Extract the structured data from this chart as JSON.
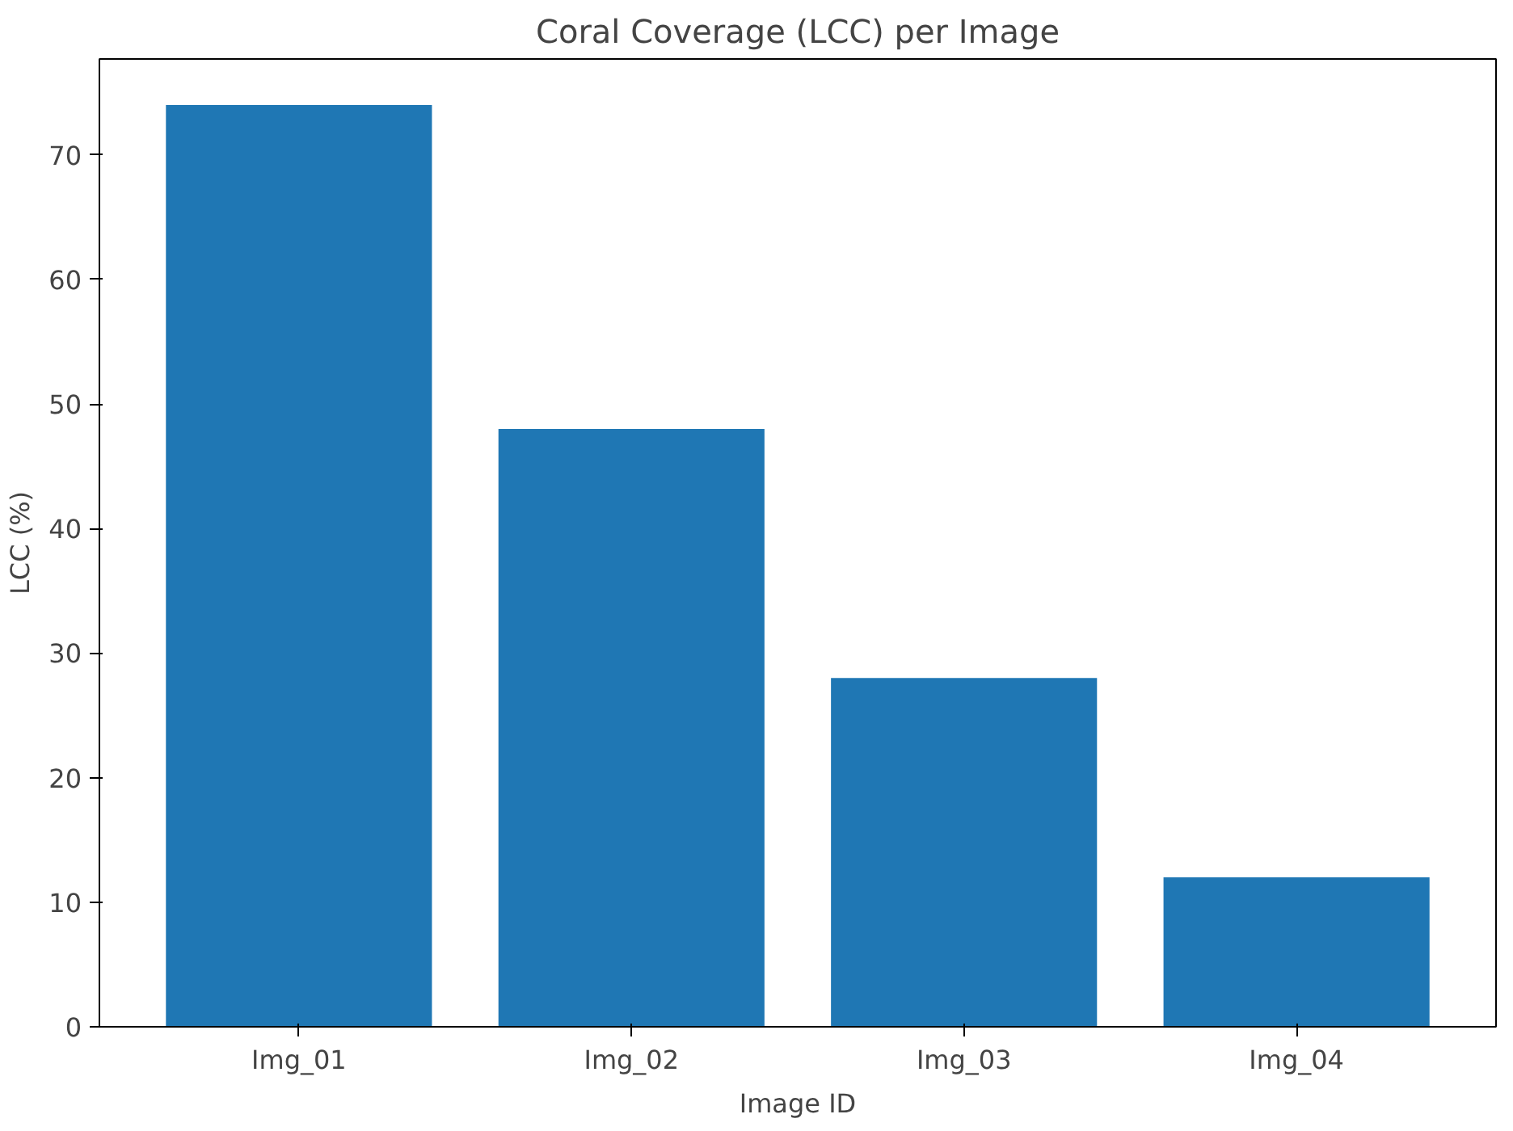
{
  "chart_data": {
    "type": "bar",
    "title": "Coral Coverage (LCC) per Image",
    "xlabel": "Image ID",
    "ylabel": "LCC (%)",
    "categories": [
      "Img_01",
      "Img_02",
      "Img_03",
      "Img_04"
    ],
    "values": [
      74,
      48,
      28,
      12
    ],
    "color": "#1f77b4",
    "ylim": [
      0,
      77.7
    ],
    "yticks": [
      0,
      10,
      20,
      30,
      40,
      50,
      60,
      70
    ],
    "grid": false
  }
}
